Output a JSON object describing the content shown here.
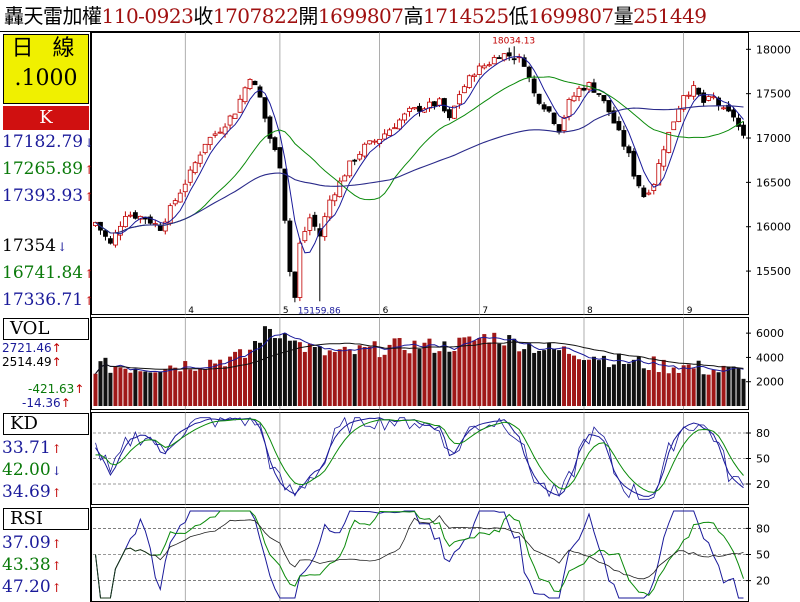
{
  "header": {
    "name": "轟天雷",
    "item1_label": "加權",
    "code": "110-0923",
    "close_label": "收",
    "close_value": "1707822",
    "open_label": "開",
    "open_value": "1699807",
    "high_label": "高",
    "high_value": "1714525",
    "low_label": "低",
    "low_value": "1699807",
    "volume_label": "量",
    "volume_value": "251449"
  },
  "left_panel": {
    "period_label": "日 線",
    "scale": ".1000",
    "k_label": "K",
    "ma_values": [
      {
        "value": "17182.79",
        "color": "#1a1a9a",
        "arrow": "↓"
      },
      {
        "value": "17265.89",
        "color": "#0a7a0a",
        "arrow": "↑"
      },
      {
        "value": "17393.93",
        "color": "#1a1a9a",
        "arrow": "↑"
      },
      {
        "value": "17354",
        "color": "#000000",
        "arrow": "↓"
      },
      {
        "value": "16741.84",
        "color": "#0a7a0a",
        "arrow": "↑"
      },
      {
        "value": "17336.71",
        "color": "#1a1a9a",
        "arrow": "↑"
      }
    ],
    "vol_label": "VOL",
    "vol_values": [
      {
        "value": "2721.46",
        "color": "#1a1a9a",
        "arrow": "↑"
      },
      {
        "value": "2514.49",
        "color": "#000000",
        "arrow": "↑"
      },
      {
        "value": "-421.63",
        "color": "#0a7a0a",
        "arrow": "↑"
      },
      {
        "value": "-14.36",
        "color": "#1a1a9a",
        "arrow": "↑"
      }
    ],
    "kd_label": "KD",
    "kd_values": [
      {
        "value": "33.71",
        "color": "#1a1a9a",
        "arrow": "↑"
      },
      {
        "value": "42.00",
        "color": "#0a7a0a",
        "arrow": "↓"
      },
      {
        "value": "34.69",
        "color": "#1a1a9a",
        "arrow": "↑"
      }
    ],
    "rsi_label": "RSI",
    "rsi_values": [
      {
        "value": "37.09",
        "color": "#1a1a9a",
        "arrow": "↑"
      },
      {
        "value": "43.38",
        "color": "#0a7a0a",
        "arrow": "↑"
      },
      {
        "value": "47.20",
        "color": "#1a1a9a",
        "arrow": "↑"
      }
    ]
  },
  "chart_data": {
    "type": "candlestick",
    "x_month_labels": [
      {
        "label": "4",
        "index": 18
      },
      {
        "label": "5",
        "index": 37
      },
      {
        "label": "6",
        "index": 57
      },
      {
        "label": "7",
        "index": 77
      },
      {
        "label": "8",
        "index": 98
      },
      {
        "label": "9",
        "index": 118
      }
    ],
    "price_axis": {
      "ticks": [
        15500,
        16000,
        16500,
        17000,
        17500,
        18000
      ],
      "ylim": [
        15050,
        18150
      ]
    },
    "price_annotations": [
      {
        "label": "18034.13",
        "index": 84,
        "value": 18034.13
      },
      {
        "label": "15159.86",
        "index": 45,
        "value": 15159.86
      }
    ],
    "price_close_anchors": [
      [
        0,
        16050
      ],
      [
        3,
        15800
      ],
      [
        6,
        16150
      ],
      [
        10,
        16100
      ],
      [
        13,
        15990
      ],
      [
        16,
        16300
      ],
      [
        19,
        16600
      ],
      [
        22,
        16950
      ],
      [
        25,
        17100
      ],
      [
        28,
        17300
      ],
      [
        31,
        17700
      ],
      [
        33,
        17450
      ],
      [
        35,
        17000
      ],
      [
        37,
        16700
      ],
      [
        38,
        16100
      ],
      [
        39,
        15500
      ],
      [
        40,
        15200
      ],
      [
        41,
        15800
      ],
      [
        43,
        16100
      ],
      [
        45,
        15900
      ],
      [
        47,
        16300
      ],
      [
        49,
        16500
      ],
      [
        51,
        16700
      ],
      [
        54,
        16900
      ],
      [
        57,
        17000
      ],
      [
        60,
        17150
      ],
      [
        63,
        17300
      ],
      [
        66,
        17350
      ],
      [
        69,
        17400
      ],
      [
        71,
        17200
      ],
      [
        73,
        17500
      ],
      [
        76,
        17750
      ],
      [
        79,
        17850
      ],
      [
        81,
        17950
      ],
      [
        84,
        17920
      ],
      [
        86,
        17850
      ],
      [
        88,
        17500
      ],
      [
        91,
        17300
      ],
      [
        93,
        17100
      ],
      [
        95,
        17400
      ],
      [
        97,
        17550
      ],
      [
        99,
        17600
      ],
      [
        101,
        17500
      ],
      [
        103,
        17300
      ],
      [
        105,
        17050
      ],
      [
        107,
        16800
      ],
      [
        108,
        16600
      ],
      [
        110,
        16350
      ],
      [
        112,
        16500
      ],
      [
        114,
        16900
      ],
      [
        116,
        17200
      ],
      [
        118,
        17500
      ],
      [
        120,
        17550
      ],
      [
        122,
        17400
      ],
      [
        124,
        17450
      ],
      [
        126,
        17300
      ],
      [
        128,
        17250
      ],
      [
        130,
        17000
      ]
    ],
    "volume_axis": {
      "ticks": [
        2000,
        4000,
        6000
      ],
      "ylim": [
        0,
        7000
      ]
    },
    "volume_anchors": [
      [
        0,
        3300
      ],
      [
        10,
        3200
      ],
      [
        20,
        3500
      ],
      [
        30,
        4100
      ],
      [
        33,
        5700
      ],
      [
        35,
        6300
      ],
      [
        37,
        5600
      ],
      [
        38,
        6600
      ],
      [
        40,
        5200
      ],
      [
        45,
        4400
      ],
      [
        50,
        4300
      ],
      [
        55,
        4600
      ],
      [
        60,
        4900
      ],
      [
        65,
        5000
      ],
      [
        70,
        4900
      ],
      [
        75,
        5300
      ],
      [
        79,
        5800
      ],
      [
        85,
        5200
      ],
      [
        90,
        4700
      ],
      [
        95,
        4500
      ],
      [
        100,
        4200
      ],
      [
        105,
        3700
      ],
      [
        110,
        3500
      ],
      [
        115,
        3300
      ],
      [
        120,
        3200
      ],
      [
        125,
        2900
      ],
      [
        130,
        2800
      ]
    ],
    "kd_axis": {
      "ticks": [
        20,
        50,
        80
      ],
      "ylim": [
        0,
        100
      ]
    },
    "rsi_axis": {
      "ticks": [
        20,
        50,
        80
      ],
      "ylim": [
        0,
        100
      ]
    },
    "bar_count": 131
  }
}
